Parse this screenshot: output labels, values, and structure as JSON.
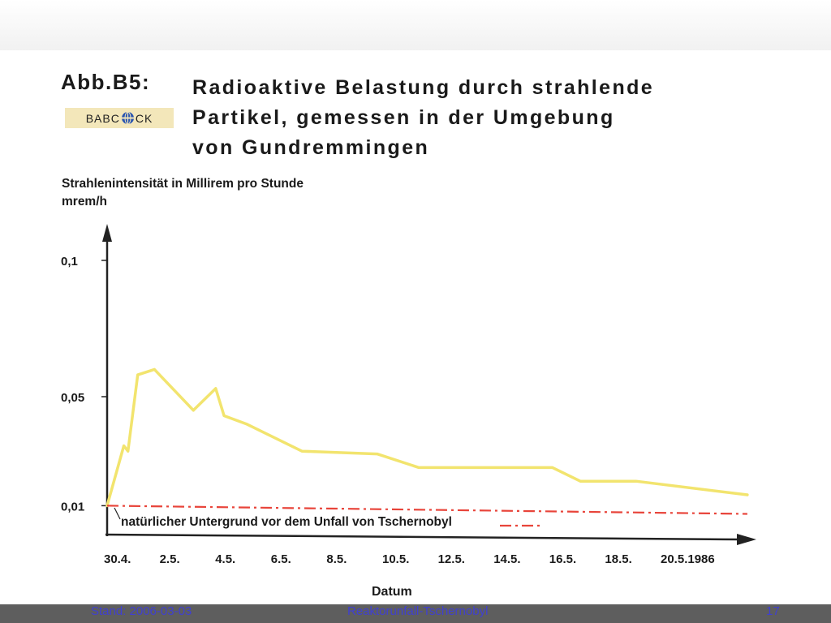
{
  "slide": {
    "title_prefix": "Abb.B5:",
    "title_lines": [
      "Radioaktive Belastung durch strahlende",
      "Partikel, gemessen in der Umgebung",
      "von Gundremmingen"
    ],
    "logo": {
      "text_left": "BABC",
      "text_right": "CK",
      "icon": "globe-icon",
      "color": "#f3e7ba"
    }
  },
  "footer": {
    "left": "Stand: 2006-03-03",
    "center": "Reaktorunfall-Tschernobyl",
    "right": "17"
  },
  "chart_data": {
    "type": "line",
    "title": "",
    "ylabel_lines": [
      "Strahlenintensität in Millirem pro Stunde",
      "mrem/h"
    ],
    "xlabel": "Datum",
    "y_ticks": [
      {
        "value": 0.01,
        "label": "0,01"
      },
      {
        "value": 0.05,
        "label": "0,05"
      },
      {
        "value": 0.1,
        "label": "0,1"
      }
    ],
    "x_ticks": [
      {
        "day": 30,
        "label": "30.4."
      },
      {
        "day": 32,
        "label": "2.5."
      },
      {
        "day": 34,
        "label": "4.5."
      },
      {
        "day": 36,
        "label": "6.5."
      },
      {
        "day": 38,
        "label": "8.5."
      },
      {
        "day": 40,
        "label": "10.5."
      },
      {
        "day": 42,
        "label": "12.5."
      },
      {
        "day": 44,
        "label": "14.5."
      },
      {
        "day": 46,
        "label": "16.5."
      },
      {
        "day": 48,
        "label": "18.5."
      },
      {
        "day": 50,
        "label": "20.5.1986"
      }
    ],
    "x_unit_note": "day = day count from 1 April 1986 (30 = 30.4., 32 = 2.5.)",
    "series": [
      {
        "name": "",
        "color": "#f2e46e",
        "points": [
          [
            30.0,
            0.01
          ],
          [
            30.6,
            0.032
          ],
          [
            30.75,
            0.03
          ],
          [
            31.1,
            0.058
          ],
          [
            31.7,
            0.06
          ],
          [
            33.1,
            0.045
          ],
          [
            33.9,
            0.053
          ],
          [
            34.2,
            0.043
          ],
          [
            35.0,
            0.04
          ],
          [
            37.0,
            0.03
          ],
          [
            39.7,
            0.029
          ],
          [
            41.2,
            0.024
          ],
          [
            46.0,
            0.024
          ],
          [
            47.0,
            0.019
          ],
          [
            49.0,
            0.019
          ],
          [
            53.0,
            0.014
          ]
        ]
      },
      {
        "name": "natürlicher Untergrund vor dem Unfall von Tschernobyl",
        "color": "#e8443a",
        "style": "dash-dot",
        "points": [
          [
            30.0,
            0.01
          ],
          [
            53.0,
            0.007
          ]
        ]
      }
    ],
    "annotation": "natürlicher Untergrund vor dem Unfall von Tschernobyl",
    "xlim": [
      30,
      53.3
    ],
    "ylim": [
      0,
      0.115
    ],
    "grid": false,
    "legend": "inline"
  }
}
